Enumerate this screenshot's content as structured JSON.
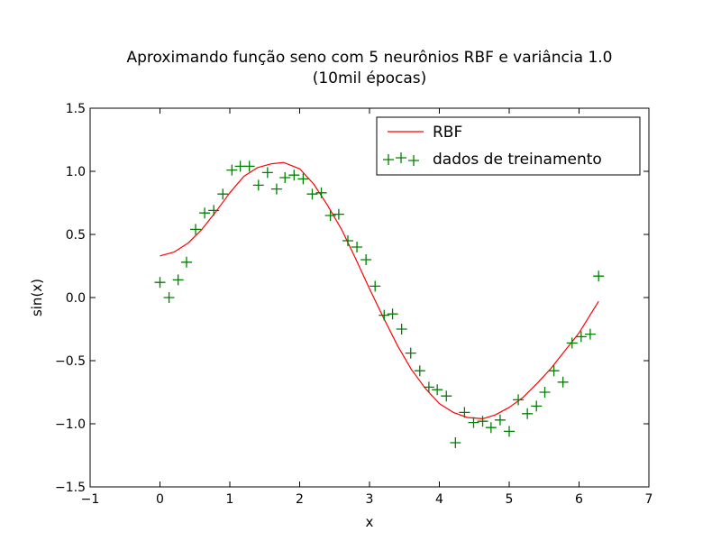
{
  "chart_data": {
    "type": "line",
    "title": [
      "Aproximando função seno com 5 neurônios RBF e variância 1.0",
      "(10mil épocas)"
    ],
    "xlabel": "x",
    "ylabel": "sin(x)",
    "xlim": [
      -1,
      7
    ],
    "ylim": [
      -1.5,
      1.5
    ],
    "xticks": [
      -1,
      0,
      1,
      2,
      3,
      4,
      5,
      6,
      7
    ],
    "xtick_labels": [
      "−1",
      "0",
      "1",
      "2",
      "3",
      "4",
      "5",
      "6",
      "7"
    ],
    "yticks": [
      -1.5,
      -1.0,
      -0.5,
      0.0,
      0.5,
      1.0,
      1.5
    ],
    "ytick_labels": [
      "−1.5",
      "−1.0",
      "−0.5",
      "0.0",
      "0.5",
      "1.0",
      "1.5"
    ],
    "grid": false,
    "legend_position": "top-right",
    "series": [
      {
        "name": "RBF",
        "kind": "line",
        "color": "#ff0000",
        "x": [
          0.0,
          0.2,
          0.4,
          0.6,
          0.8,
          1.0,
          1.2,
          1.4,
          1.6,
          1.77,
          2.0,
          2.2,
          2.4,
          2.6,
          2.8,
          3.0,
          3.2,
          3.4,
          3.6,
          3.8,
          4.0,
          4.2,
          4.4,
          4.62,
          4.8,
          5.0,
          5.2,
          5.4,
          5.6,
          5.8,
          6.0,
          6.28
        ],
        "y": [
          0.33,
          0.36,
          0.43,
          0.54,
          0.68,
          0.83,
          0.96,
          1.03,
          1.06,
          1.07,
          1.02,
          0.9,
          0.73,
          0.54,
          0.31,
          0.07,
          -0.16,
          -0.38,
          -0.57,
          -0.72,
          -0.84,
          -0.91,
          -0.95,
          -0.96,
          -0.93,
          -0.87,
          -0.79,
          -0.68,
          -0.56,
          -0.42,
          -0.28,
          -0.03
        ]
      },
      {
        "name": "dados de treinamento",
        "kind": "scatter",
        "marker": "+",
        "color": "#008000",
        "x": [
          0.0,
          0.13,
          0.26,
          0.38,
          0.51,
          0.64,
          0.77,
          0.9,
          1.03,
          1.15,
          1.28,
          1.41,
          1.54,
          1.67,
          1.79,
          1.92,
          2.05,
          2.18,
          2.31,
          2.44,
          2.56,
          2.69,
          2.82,
          2.95,
          3.08,
          3.21,
          3.33,
          3.46,
          3.59,
          3.72,
          3.85,
          3.97,
          4.1,
          4.23,
          4.36,
          4.49,
          4.62,
          4.74,
          4.87,
          5.0,
          5.13,
          5.26,
          5.39,
          5.51,
          5.64,
          5.77,
          5.9,
          6.03,
          6.16,
          6.28
        ],
        "y": [
          0.12,
          0.0,
          0.14,
          0.28,
          0.54,
          0.67,
          0.69,
          0.82,
          1.01,
          1.04,
          1.04,
          0.89,
          0.99,
          0.86,
          0.95,
          0.97,
          0.94,
          0.82,
          0.83,
          0.65,
          0.66,
          0.45,
          0.4,
          0.3,
          0.09,
          -0.14,
          -0.13,
          -0.25,
          -0.44,
          -0.58,
          -0.71,
          -0.73,
          -0.78,
          -1.15,
          -0.91,
          -0.99,
          -0.98,
          -1.03,
          -0.97,
          -1.06,
          -0.81,
          -0.92,
          -0.86,
          -0.75,
          -0.58,
          -0.67,
          -0.36,
          -0.31,
          -0.29,
          0.17
        ]
      }
    ]
  }
}
